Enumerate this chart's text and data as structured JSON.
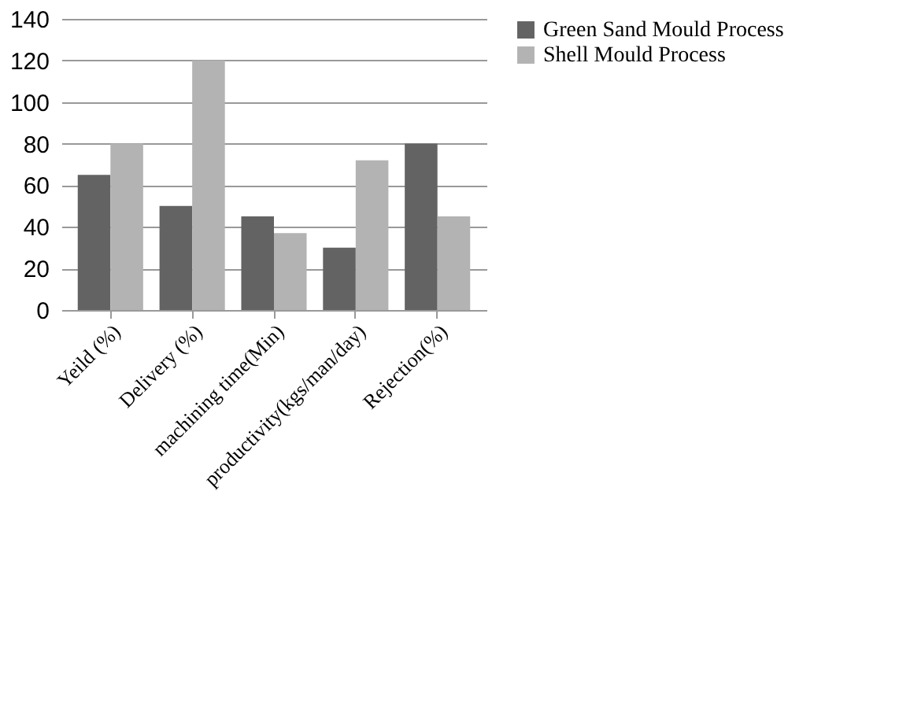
{
  "chart_data": {
    "type": "bar",
    "categories": [
      "Yeild (%)",
      "Delivery (%)",
      "machining time(Min)",
      "productivity(kgs/man/day)",
      "Rejection(%)"
    ],
    "series": [
      {
        "name": "Green Sand Mould Process",
        "color": "#636363",
        "values": [
          65,
          50,
          45,
          30,
          80
        ]
      },
      {
        "name": "Shell Mould Process",
        "color": "#b3b3b3",
        "values": [
          80,
          120,
          37,
          72,
          45
        ]
      }
    ],
    "ylim": [
      0,
      140
    ],
    "yticks": [
      0,
      20,
      40,
      60,
      80,
      100,
      120,
      140
    ],
    "grid": "y",
    "legend": "right"
  }
}
